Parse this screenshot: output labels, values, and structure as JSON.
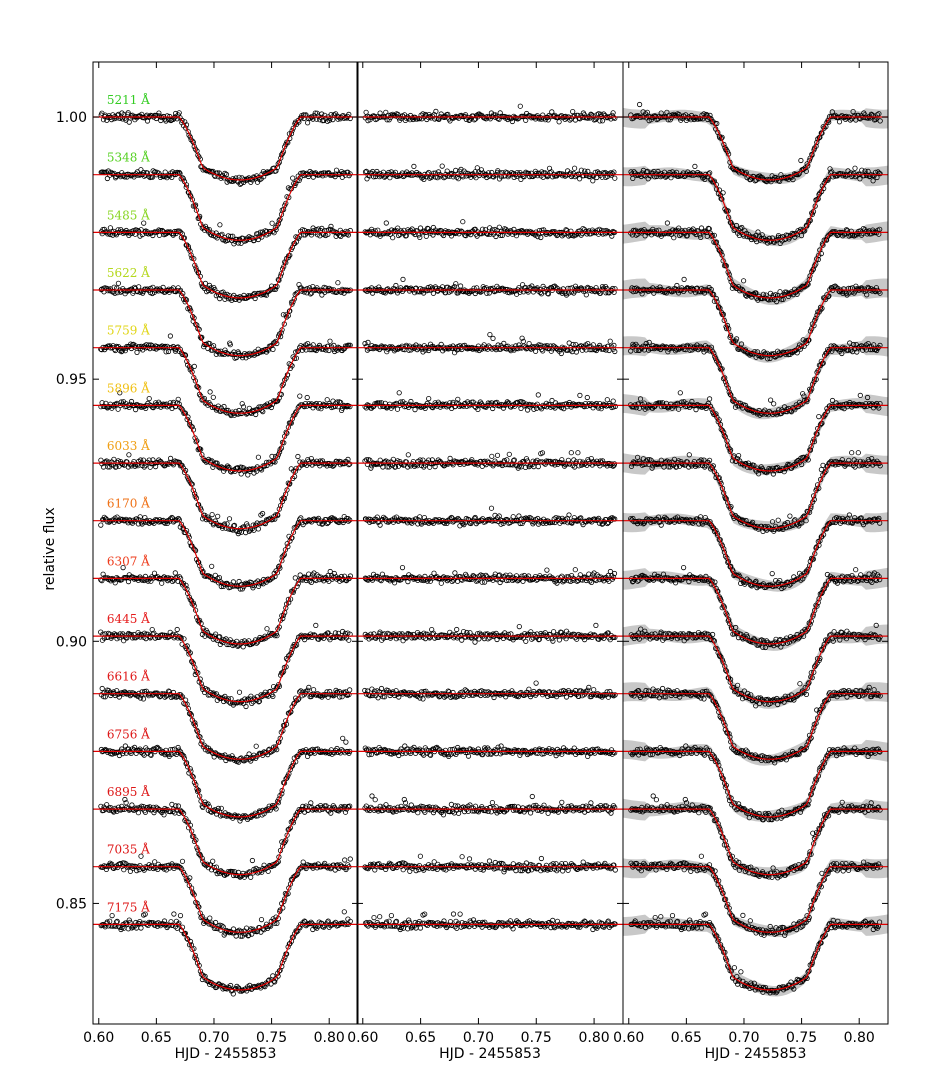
{
  "chart_data": {
    "type": "scatter",
    "panels": [
      {
        "name": "raw",
        "xlabel": "HJD - 2455853",
        "show_labels": true,
        "show_band": false,
        "residual": false
      },
      {
        "name": "residuals",
        "xlabel": "HJD - 2455853",
        "show_labels": false,
        "show_band": false,
        "residual": true
      },
      {
        "name": "gp-model",
        "xlabel": "HJD - 2455853",
        "show_labels": false,
        "show_band": true,
        "residual": false
      }
    ],
    "ylabel": "relative flux",
    "xlim": [
      0.595,
      0.825
    ],
    "ylim": [
      0.827,
      1.0105
    ],
    "xticks": [
      "0.60",
      "0.65",
      "0.70",
      "0.75",
      "0.80"
    ],
    "xtick_values": [
      0.6,
      0.65,
      0.7,
      0.75,
      0.8
    ],
    "yticks": [
      "0.85",
      "0.90",
      "0.95",
      "1.00"
    ],
    "ytick_values": [
      0.85,
      0.9,
      0.95,
      1.0
    ],
    "transit": {
      "ingress_start": 0.67,
      "ingress_end": 0.69,
      "egress_start": 0.755,
      "egress_end": 0.775,
      "mid": 0.7225
    },
    "x_start": 0.602,
    "x_end": 0.818,
    "series": [
      {
        "name": "5211 Å",
        "color": "#33cc22",
        "baseline": 1.0,
        "depth": 0.012
      },
      {
        "name": "5348 Å",
        "color": "#55d022",
        "baseline": 0.989,
        "depth": 0.0125
      },
      {
        "name": "5485 Å",
        "color": "#88d522",
        "baseline": 0.978,
        "depth": 0.0125
      },
      {
        "name": "5622 Å",
        "color": "#b5d81e",
        "baseline": 0.967,
        "depth": 0.0125
      },
      {
        "name": "5759 Å",
        "color": "#e0d516",
        "baseline": 0.956,
        "depth": 0.0125
      },
      {
        "name": "5896 Å",
        "color": "#f0c012",
        "baseline": 0.945,
        "depth": 0.0125
      },
      {
        "name": "6033 Å",
        "color": "#f09e12",
        "baseline": 0.934,
        "depth": 0.0125
      },
      {
        "name": "6170 Å",
        "color": "#ef7015",
        "baseline": 0.923,
        "depth": 0.0125
      },
      {
        "name": "6307 Å",
        "color": "#ee3a1a",
        "baseline": 0.912,
        "depth": 0.0125
      },
      {
        "name": "6445 Å",
        "color": "#e51a1a",
        "baseline": 0.901,
        "depth": 0.0125
      },
      {
        "name": "6616 Å",
        "color": "#e01818",
        "baseline": 0.89,
        "depth": 0.0125
      },
      {
        "name": "6756 Å",
        "color": "#dd1616",
        "baseline": 0.879,
        "depth": 0.0125
      },
      {
        "name": "6895 Å",
        "color": "#dd1616",
        "baseline": 0.868,
        "depth": 0.0125
      },
      {
        "name": "7035 Å",
        "color": "#dd1616",
        "baseline": 0.857,
        "depth": 0.0125
      },
      {
        "name": "7175 Å",
        "color": "#dd1616",
        "baseline": 0.846,
        "depth": 0.0125
      }
    ],
    "grid": false,
    "legend": "none"
  }
}
